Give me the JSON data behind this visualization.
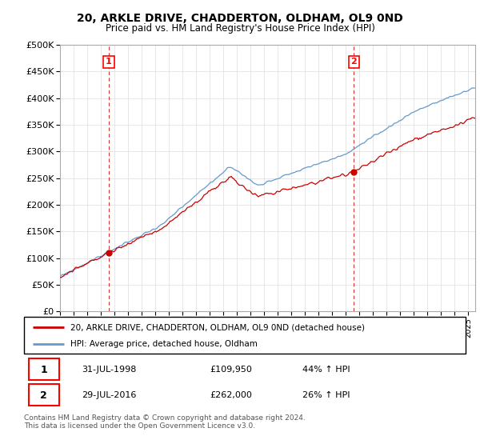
{
  "title": "20, ARKLE DRIVE, CHADDERTON, OLDHAM, OL9 0ND",
  "subtitle": "Price paid vs. HM Land Registry's House Price Index (HPI)",
  "legend_house": "20, ARKLE DRIVE, CHADDERTON, OLDHAM, OL9 0ND (detached house)",
  "legend_hpi": "HPI: Average price, detached house, Oldham",
  "annotation1_label": "1",
  "annotation1_date": "31-JUL-1998",
  "annotation1_price": "£109,950",
  "annotation1_hpi": "44% ↑ HPI",
  "annotation2_label": "2",
  "annotation2_date": "29-JUL-2016",
  "annotation2_price": "£262,000",
  "annotation2_hpi": "26% ↑ HPI",
  "footer": "Contains HM Land Registry data © Crown copyright and database right 2024.\nThis data is licensed under the Open Government Licence v3.0.",
  "house_color": "#cc0000",
  "hpi_color": "#6699cc",
  "vline_color": "#cc0000",
  "ylim": [
    0,
    500000
  ],
  "yticks": [
    0,
    50000,
    100000,
    150000,
    200000,
    250000,
    300000,
    350000,
    400000,
    450000,
    500000
  ],
  "sale1_x": 1998.58,
  "sale1_y": 109950,
  "sale2_x": 2016.58,
  "sale2_y": 262000,
  "xmin": 1995.0,
  "xmax": 2025.5
}
